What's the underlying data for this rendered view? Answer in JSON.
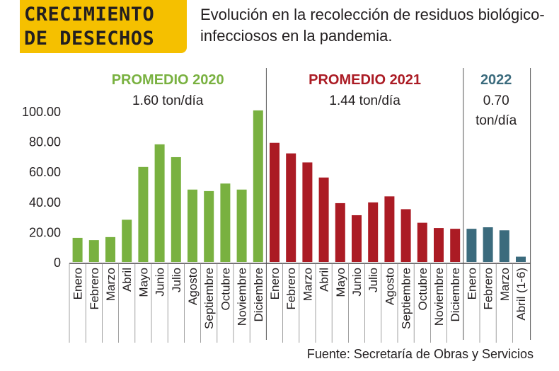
{
  "header": {
    "title": "CRECIMIENTO\nDE DESECHOS",
    "subtitle": "Evolución en la recolección de residuos biológico-infecciosos en la pandemia."
  },
  "source": "Fuente: Secretaría de Obras y Servicios",
  "colors": {
    "y2020": "#79b140",
    "y2021": "#ab1b24",
    "y2022": "#3b6b7d",
    "accent": "#f5c000"
  },
  "chart_data": {
    "type": "bar",
    "title": "",
    "xlabel": "",
    "ylabel": "",
    "ylim": [
      0,
      100
    ],
    "yticks": [
      "0",
      "20.00",
      "40.00",
      "60.00",
      "80.00",
      "100.00"
    ],
    "grid": false,
    "categories": [
      "Enero",
      "Febrero",
      "Marzo",
      "Abril",
      "Mayo",
      "Junio",
      "Julio",
      "Agosto",
      "Septiembre",
      "Octubre",
      "Noviembre",
      "Diciembre",
      "Enero",
      "Febrero",
      "Marzo",
      "Abril",
      "Mayo",
      "Junio",
      "Julio",
      "Agosto",
      "Septiembre",
      "Octubre",
      "Noviembre",
      "Diciembre",
      "Enero",
      "Febrero",
      "Marzo",
      "Abril (1-6)"
    ],
    "values": [
      16,
      14.5,
      16.5,
      28,
      63,
      78,
      69.5,
      48,
      47,
      52,
      48,
      100.5,
      79,
      72,
      66,
      56,
      39,
      31,
      39.5,
      43.5,
      35,
      26,
      22.5,
      22,
      22,
      23,
      21,
      3.5
    ],
    "groups": [
      {
        "year": "2020",
        "label": "PROMEDIO 2020",
        "average": "1.60 ton/día",
        "start": 0,
        "count": 12
      },
      {
        "year": "2021",
        "label": "PROMEDIO 2021",
        "average": "1.44 ton/día",
        "start": 12,
        "count": 12
      },
      {
        "year": "2022",
        "label": "2022",
        "average": "0.70\nton/día",
        "start": 24,
        "count": 4
      }
    ]
  }
}
